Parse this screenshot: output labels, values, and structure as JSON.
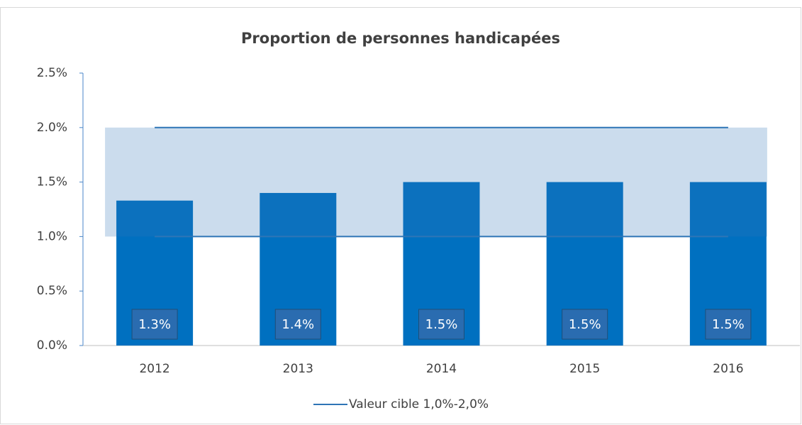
{
  "chart_data": {
    "type": "bar",
    "title": "Proportion de personnes handicapées",
    "categories": [
      "2012",
      "2013",
      "2014",
      "2015",
      "2016"
    ],
    "values": [
      1.33,
      1.4,
      1.5,
      1.5,
      1.5
    ],
    "value_labels": [
      "1.3%",
      "1.4%",
      "1.5%",
      "1.5%",
      "1.5%"
    ],
    "color": "#0070c0",
    "target": {
      "name": "Valeur cible 1,0%-2,0%",
      "color": "#2e75b6",
      "low": 1.0,
      "high": 2.0,
      "band_color": "#2e75b6"
    },
    "ylim": [
      0,
      2.5
    ],
    "yticks": [
      {
        "value": 0,
        "label": "0.0%"
      },
      {
        "value": 0.5,
        "label": "0.5%"
      },
      {
        "value": 1.0,
        "label": "1.0%"
      },
      {
        "value": 1.5,
        "label": "1.5%"
      },
      {
        "value": 2.0,
        "label": "2.0%"
      },
      {
        "value": 2.5,
        "label": "2.5%"
      }
    ],
    "grid": false
  }
}
